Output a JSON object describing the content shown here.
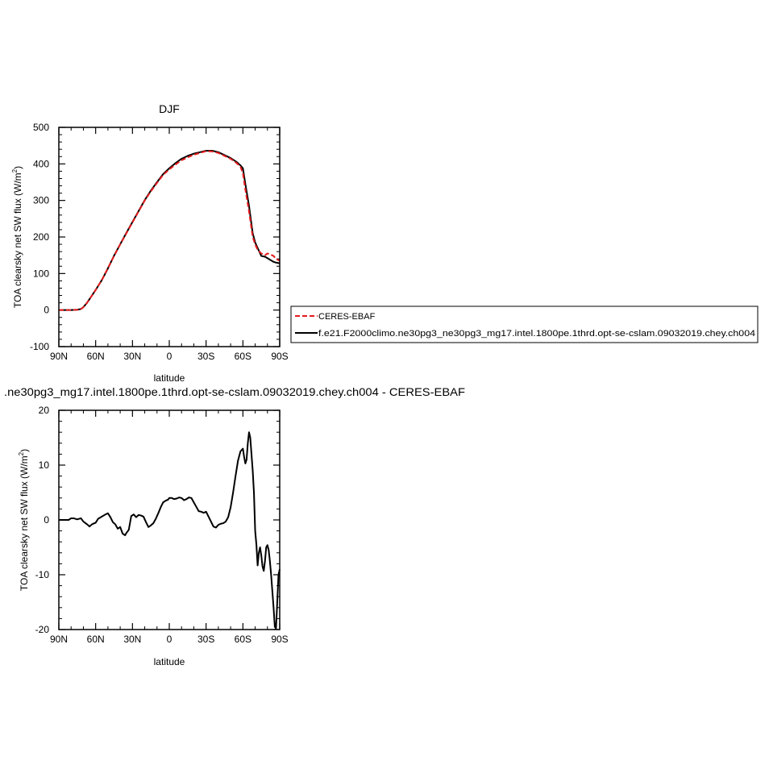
{
  "chart_data": [
    {
      "type": "line",
      "title": "DJF",
      "xlabel": "latitude",
      "ylabel_main": "TOA clearsky net SW flux (W/m",
      "ylabel_sup": "2",
      "ylabel_tail": ")",
      "xlim": [
        90,
        -90
      ],
      "ylim": [
        -100,
        500
      ],
      "x_tick_labels": [
        "90N",
        "60N",
        "30N",
        "0",
        "30S",
        "60S",
        "90S"
      ],
      "x_tick_values": [
        90,
        60,
        30,
        0,
        -30,
        -60,
        -90
      ],
      "y_tick_labels": [
        "-100",
        "0",
        "100",
        "200",
        "300",
        "400",
        "500"
      ],
      "y_tick_values": [
        -100,
        0,
        100,
        200,
        300,
        400,
        500
      ],
      "legend": {
        "placement": "right",
        "entries": [
          {
            "label": "CERES-EBAF",
            "color": "#e41a1c",
            "style": "dashed"
          },
          {
            "label": "f.e21.F2000climo.ne30pg3_ne30pg3_mg17.intel.1800pe.1thrd.opt-se-cslam.09032019.chey.ch004",
            "color": "#000000",
            "style": "solid"
          }
        ]
      },
      "series": [
        {
          "name": "CERES-EBAF",
          "color": "#e41a1c",
          "style": "dashed",
          "x": [
            90,
            85,
            80,
            75,
            72,
            70,
            67,
            65,
            60,
            55,
            50,
            45,
            40,
            35,
            30,
            25,
            20,
            15,
            10,
            5,
            0,
            -5,
            -10,
            -15,
            -20,
            -25,
            -30,
            -35,
            -40,
            -45,
            -50,
            -55,
            -58,
            -60,
            -62,
            -65,
            -68,
            -70,
            -72,
            -75,
            -78,
            -80,
            -82,
            -85,
            -87,
            -90
          ],
          "y": [
            0,
            0,
            0,
            1,
            3,
            8,
            20,
            30,
            55,
            82,
            115,
            148,
            180,
            210,
            240,
            270,
            300,
            325,
            348,
            370,
            385,
            398,
            410,
            418,
            425,
            430,
            435,
            434,
            430,
            422,
            414,
            402,
            392,
            375,
            330,
            270,
            200,
            180,
            165,
            155,
            150,
            155,
            153,
            148,
            140,
            135
          ]
        },
        {
          "name": "f.e21.F2000climo.ne30pg3_ne30pg3_mg17.intel.1800pe.1thrd.opt-se-cslam.09032019.chey.ch004",
          "color": "#000000",
          "style": "solid",
          "x": [
            90,
            85,
            80,
            75,
            72,
            70,
            67,
            65,
            60,
            55,
            50,
            45,
            40,
            35,
            30,
            25,
            20,
            15,
            10,
            5,
            0,
            -5,
            -10,
            -15,
            -20,
            -25,
            -30,
            -35,
            -40,
            -45,
            -50,
            -55,
            -58,
            -60,
            -62,
            -65,
            -68,
            -70,
            -72,
            -75,
            -78,
            -80,
            -82,
            -85,
            -87,
            -90
          ],
          "y": [
            0,
            0,
            0,
            1,
            3,
            8,
            20,
            30,
            55,
            82,
            114,
            149,
            180,
            211,
            241,
            271,
            301,
            327,
            350,
            372,
            388,
            402,
            414,
            422,
            428,
            432,
            436,
            436,
            432,
            424,
            416,
            405,
            396,
            388,
            345,
            285,
            210,
            185,
            170,
            148,
            146,
            142,
            138,
            132,
            130,
            128
          ]
        }
      ]
    },
    {
      "type": "line",
      "title": ".ne30pg3_mg17.intel.1800pe.1thrd.opt-se-cslam.09032019.chey.ch004 - CERES-EBAF",
      "xlabel": "latitude",
      "ylabel_main": "TOA clearsky net SW flux (W/m",
      "ylabel_sup": "2",
      "ylabel_tail": ")",
      "xlim": [
        90,
        -90
      ],
      "ylim": [
        -20,
        20
      ],
      "x_tick_labels": [
        "90N",
        "60N",
        "30N",
        "0",
        "30S",
        "60S",
        "90S"
      ],
      "x_tick_values": [
        90,
        60,
        30,
        0,
        -30,
        -60,
        -90
      ],
      "y_tick_labels": [
        "-20",
        "-10",
        "0",
        "10",
        "20"
      ],
      "y_tick_values": [
        -20,
        -10,
        0,
        10,
        20
      ],
      "series": [
        {
          "color": "#000000",
          "style": "solid",
          "x": [
            90,
            85,
            82,
            80,
            78,
            75,
            72,
            70,
            67,
            65,
            63,
            60,
            58,
            55,
            52,
            50,
            48,
            46,
            44,
            42,
            40,
            38,
            36,
            35,
            33,
            31,
            29,
            27,
            25,
            23,
            21,
            19,
            17,
            15,
            13,
            11,
            9,
            7,
            5,
            3,
            1,
            0,
            -2,
            -4,
            -6,
            -8,
            -10,
            -12,
            -14,
            -16,
            -18,
            -20,
            -22,
            -24,
            -26,
            -28,
            -30,
            -32,
            -34,
            -36,
            -38,
            -40,
            -42,
            -44,
            -46,
            -48,
            -50,
            -52,
            -54,
            -56,
            -58,
            -60,
            -61,
            -62,
            -63,
            -64,
            -65,
            -66,
            -67,
            -68,
            -69,
            -70,
            -71,
            -72,
            -73,
            -74,
            -75,
            -76,
            -77,
            -78,
            -79,
            -80,
            -81,
            -82,
            -83,
            -84,
            -85,
            -86,
            -87,
            -88,
            -89,
            -90
          ],
          "y": [
            0,
            0,
            0,
            0.3,
            0.3,
            0.1,
            0.3,
            -0.3,
            -0.8,
            -1.2,
            -0.8,
            -0.5,
            0.2,
            0.6,
            1.0,
            1.2,
            0.5,
            -0.4,
            -0.8,
            -1.6,
            -1.3,
            -2.5,
            -2.8,
            -2.4,
            -1.8,
            0.7,
            1.0,
            0.5,
            0.9,
            0.8,
            0.6,
            -0.4,
            -1.3,
            -1.0,
            -0.6,
            0.2,
            1.2,
            2.3,
            3.2,
            3.5,
            3.7,
            4.0,
            4.0,
            3.8,
            3.9,
            4.1,
            4.0,
            3.6,
            3.8,
            4.1,
            4.0,
            3.2,
            2.4,
            1.6,
            1.5,
            1.3,
            1.5,
            0.6,
            -0.3,
            -1.2,
            -1.4,
            -0.9,
            -0.7,
            -0.6,
            -0.3,
            0.5,
            2.3,
            5.0,
            8.0,
            10.8,
            12.5,
            13.0,
            11.5,
            10.3,
            11.0,
            14.0,
            16.0,
            15.0,
            12.0,
            9.0,
            5.0,
            -2.0,
            -4.5,
            -8.3,
            -6.0,
            -5.0,
            -6.5,
            -8.5,
            -9.3,
            -7.5,
            -5.0,
            -4.6,
            -5.5,
            -7.5,
            -10.0,
            -13.0,
            -16.0,
            -19.5,
            -19.8,
            -15.0,
            -10.0,
            -9.0
          ]
        }
      ]
    }
  ]
}
